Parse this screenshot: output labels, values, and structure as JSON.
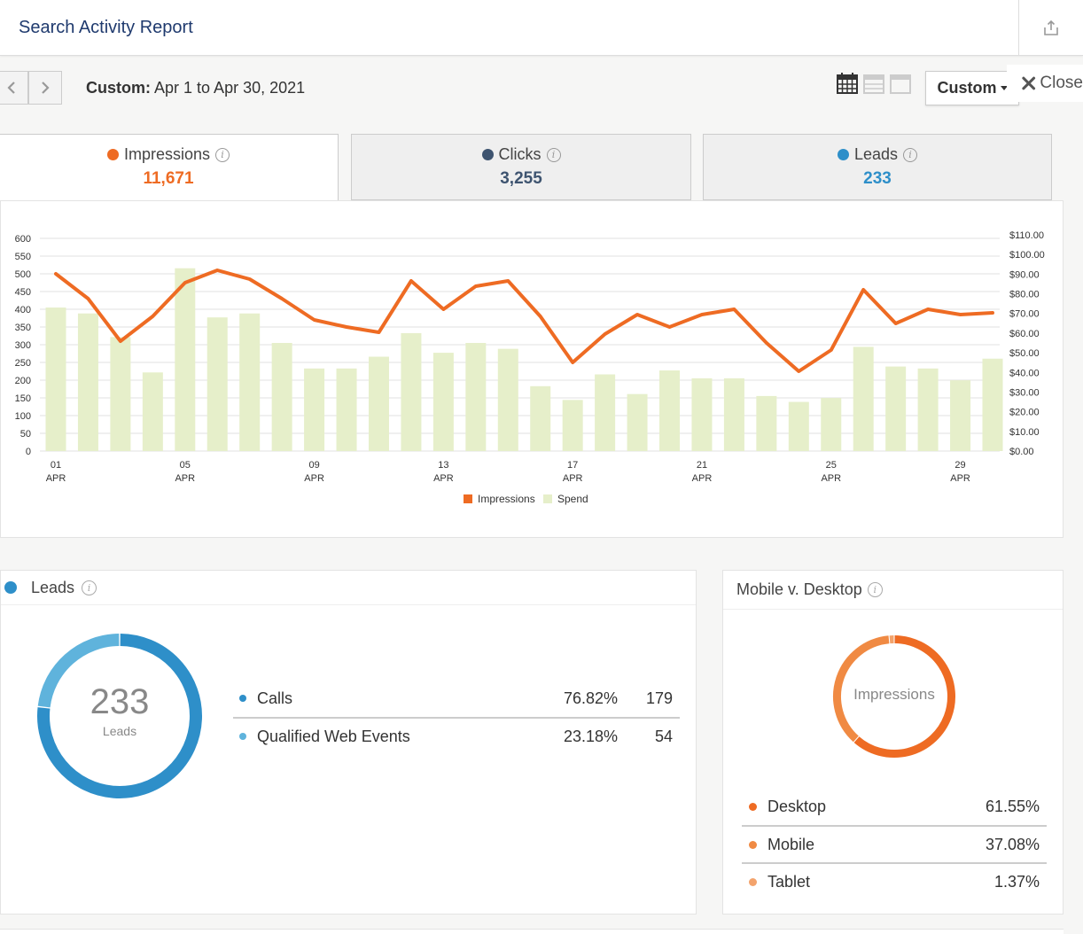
{
  "header": {
    "title": "Search Activity Report"
  },
  "daterange": {
    "prefix": "Custom:",
    "text": "Apr 1 to Apr 30, 2021",
    "custom_label": "Custom",
    "close_label": "Close"
  },
  "tabs": [
    {
      "label": "Impressions",
      "value": "11,671",
      "color": "#ee6b23"
    },
    {
      "label": "Clicks",
      "value": "3,255",
      "color": "#3e5470"
    },
    {
      "label": "Leads",
      "value": "233",
      "color": "#2e8fc9"
    }
  ],
  "chart_data": {
    "type": "bar+line",
    "x": [
      "01",
      "02",
      "03",
      "04",
      "05",
      "06",
      "07",
      "08",
      "09",
      "10",
      "11",
      "12",
      "13",
      "14",
      "15",
      "16",
      "17",
      "18",
      "19",
      "20",
      "21",
      "22",
      "23",
      "24",
      "25",
      "26",
      "27",
      "28",
      "29",
      "30"
    ],
    "x_ticks": [
      {
        "day": "01",
        "month": "APR"
      },
      {
        "day": "05",
        "month": "APR"
      },
      {
        "day": "09",
        "month": "APR"
      },
      {
        "day": "13",
        "month": "APR"
      },
      {
        "day": "17",
        "month": "APR"
      },
      {
        "day": "21",
        "month": "APR"
      },
      {
        "day": "25",
        "month": "APR"
      },
      {
        "day": "29",
        "month": "APR"
      }
    ],
    "y_left_ticks": [
      "0",
      "50",
      "100",
      "150",
      "200",
      "250",
      "300",
      "350",
      "400",
      "450",
      "500",
      "550",
      "600"
    ],
    "y_right_ticks": [
      "$0.00",
      "$10.00",
      "$20.00",
      "$30.00",
      "$40.00",
      "$50.00",
      "$60.00",
      "$70.00",
      "$80.00",
      "$90.00",
      "$100.00",
      "$110.00"
    ],
    "ylim_left": [
      0,
      600
    ],
    "ylim_right": [
      0,
      110
    ],
    "series": [
      {
        "name": "Impressions",
        "axis": "left",
        "kind": "line",
        "color": "#ee6b23",
        "values": [
          500,
          430,
          310,
          380,
          475,
          510,
          485,
          430,
          370,
          350,
          335,
          480,
          400,
          465,
          480,
          380,
          250,
          330,
          385,
          350,
          385,
          400,
          305,
          225,
          285,
          455,
          360,
          400,
          385,
          390
        ]
      },
      {
        "name": "Spend",
        "axis": "right",
        "kind": "bar",
        "color": "#e6efca",
        "values": [
          73,
          70,
          58,
          40,
          93,
          68,
          70,
          55,
          42,
          42,
          48,
          60,
          50,
          55,
          52,
          33,
          26,
          39,
          29,
          41,
          37,
          37,
          28,
          25,
          27,
          53,
          43,
          42,
          36,
          47
        ]
      }
    ],
    "legend": "bottom-center",
    "grid": true
  },
  "leads": {
    "title": "Leads",
    "total": "233",
    "total_label": "Leads",
    "rows": [
      {
        "name": "Calls",
        "pct": "76.82%",
        "count": "179",
        "color": "#2e8fc9"
      },
      {
        "name": "Qualified Web Events",
        "pct": "23.18%",
        "count": "54",
        "color": "#5fb3dc"
      }
    ],
    "share": [
      0.7682,
      0.2318
    ]
  },
  "mobile_desktop": {
    "title": "Mobile v. Desktop",
    "center_label": "Impressions",
    "rows": [
      {
        "name": "Desktop",
        "pct": "61.55%",
        "color": "#ee6b23"
      },
      {
        "name": "Mobile",
        "pct": "37.08%",
        "color": "#f08a43"
      },
      {
        "name": "Tablet",
        "pct": "1.37%",
        "color": "#f3a36c"
      }
    ],
    "share": [
      0.6155,
      0.3708,
      0.0137
    ]
  }
}
